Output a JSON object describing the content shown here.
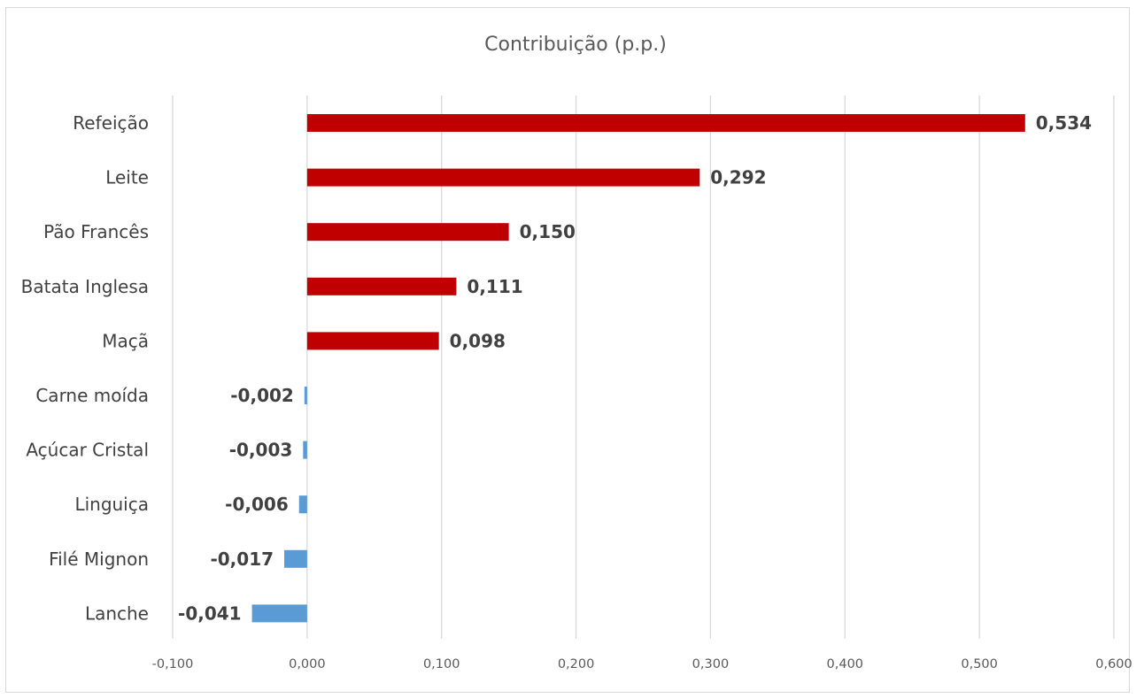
{
  "chart_data": {
    "type": "bar",
    "orientation": "horizontal",
    "title": "Contribuição (p.p.)",
    "categories": [
      "Refeição",
      "Leite",
      "Pão Francês",
      "Batata Inglesa",
      "Maçã",
      "Carne moída",
      "Açúcar Cristal",
      "Linguiça",
      "Filé Mignon",
      "Lanche"
    ],
    "values": [
      0.534,
      0.292,
      0.15,
      0.111,
      0.098,
      -0.002,
      -0.003,
      -0.006,
      -0.017,
      -0.041
    ],
    "data_labels": [
      "0,534",
      "0,292",
      "0,150",
      "0,111",
      "0,098",
      "-0,002",
      "-0,003",
      "-0,006",
      "-0,017",
      "-0,041"
    ],
    "xlim": [
      -0.1,
      0.6
    ],
    "x_ticks": [
      -0.1,
      0.0,
      0.1,
      0.2,
      0.3,
      0.4,
      0.5,
      0.6
    ],
    "x_tick_labels": [
      "-0,100",
      "0,000",
      "0,100",
      "0,200",
      "0,300",
      "0,400",
      "0,500",
      "0,600"
    ],
    "grid": "vertical",
    "legend": "none",
    "colors": {
      "positive": "#c00000",
      "negative": "#5b9bd5",
      "gridline": "#d9d9d9",
      "text": "#404040",
      "tick_text": "#595959"
    }
  }
}
